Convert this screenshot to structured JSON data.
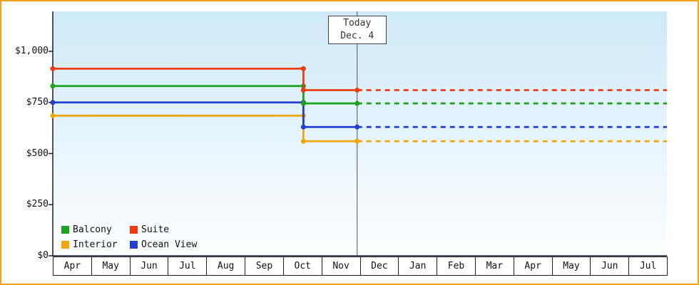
{
  "chart_data": {
    "type": "line",
    "title": "",
    "x_labels": [
      "Apr",
      "May",
      "Jun",
      "Jul",
      "Aug",
      "Sep",
      "Oct",
      "Nov",
      "Dec",
      "Jan",
      "Feb",
      "Mar",
      "Apr",
      "May",
      "Jun",
      "Jul"
    ],
    "y_ticks": [
      "$1,000",
      "$750",
      "$500",
      "$250",
      "$0"
    ],
    "y_tick_values": [
      1000,
      750,
      500,
      250,
      0
    ],
    "y_axis_max": 1000,
    "grid": false,
    "price_change_month_index": 6.53,
    "today_month_index": 7.93,
    "today_label": {
      "line1": "Today",
      "line2": "Dec. 4"
    },
    "series": [
      {
        "name": "Balcony",
        "color": "#1ca11c",
        "past_value": 830,
        "current_value": 745
      },
      {
        "name": "Suite",
        "color": "#ec3b13",
        "past_value": 915,
        "current_value": 810
      },
      {
        "name": "Interior",
        "color": "#f2a60e",
        "past_value": 685,
        "current_value": 560
      },
      {
        "name": "Ocean View",
        "color": "#2040d0",
        "past_value": 750,
        "current_value": 630
      }
    ],
    "legend": {
      "position": "bottom-left",
      "items": [
        {
          "label": "Balcony",
          "color": "#1ca11c"
        },
        {
          "label": "Suite",
          "color": "#ec3b13"
        },
        {
          "label": "Interior",
          "color": "#f2a60e"
        },
        {
          "label": "Ocean View",
          "color": "#2040d0"
        }
      ]
    },
    "styles": {
      "frame_border_color": "#f6a21c",
      "plot_bg_top": "#cfe9f8",
      "plot_bg_bottom": "#fdfeff",
      "axis_color": "#1a1a2e",
      "today_line_color": "#555555"
    }
  }
}
